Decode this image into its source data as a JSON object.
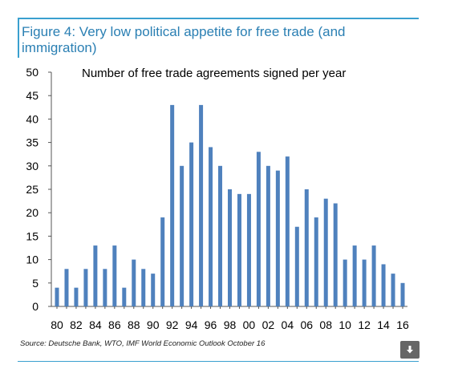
{
  "figure": {
    "title": "Figure 4: Very low political appetite for free trade (and immigration)",
    "subtitle": "Number of free trade agreements signed per year",
    "source": "Source: Deutsche Bank, WTO, IMF World Economic Outlook October 16",
    "download_icon": "download-arrow-icon"
  },
  "chart_data": {
    "type": "bar",
    "title": "Number of free trade agreements signed per year",
    "xlabel": "",
    "ylabel": "",
    "ylim": [
      0,
      50
    ],
    "yticks": [
      0,
      5,
      10,
      15,
      20,
      25,
      30,
      35,
      40,
      45,
      50
    ],
    "categories": [
      "80",
      "81",
      "82",
      "83",
      "84",
      "85",
      "86",
      "87",
      "88",
      "89",
      "90",
      "91",
      "92",
      "93",
      "94",
      "95",
      "96",
      "97",
      "98",
      "99",
      "00",
      "01",
      "02",
      "03",
      "04",
      "05",
      "06",
      "07",
      "08",
      "09",
      "10",
      "11",
      "12",
      "13",
      "14",
      "15",
      "16"
    ],
    "xtick_labels": [
      "80",
      "82",
      "84",
      "86",
      "88",
      "90",
      "92",
      "94",
      "96",
      "98",
      "00",
      "02",
      "04",
      "06",
      "08",
      "10",
      "12",
      "14",
      "16"
    ],
    "values": [
      4,
      8,
      4,
      8,
      13,
      8,
      13,
      4,
      10,
      8,
      7,
      19,
      43,
      30,
      35,
      43,
      34,
      30,
      25,
      24,
      24,
      33,
      30,
      29,
      32,
      17,
      25,
      19,
      23,
      22,
      10,
      13,
      10,
      13,
      9,
      7,
      5
    ],
    "bar_color": "#4f81bd",
    "grid": false,
    "legend": "none"
  }
}
